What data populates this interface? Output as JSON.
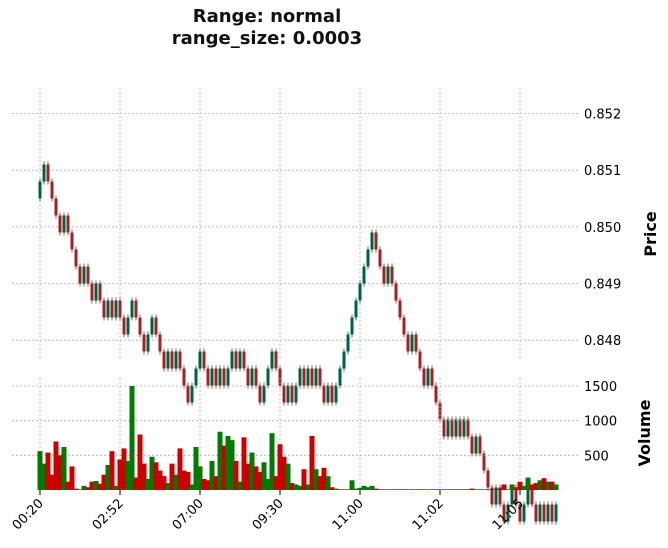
{
  "chart_data": {
    "type": "candlestick",
    "title": "Range: normal",
    "subtitle": "range_size: 0.0003",
    "price_panel": {
      "ylabel": "Price",
      "yticks": [
        0.848,
        0.849,
        0.85,
        0.851,
        0.852
      ],
      "ylim": [
        0.84765,
        0.85245
      ]
    },
    "volume_panel": {
      "ylabel": "Volume",
      "yticks": [
        500,
        1000,
        1500
      ],
      "ylim": [
        0,
        1500
      ]
    },
    "x_tick_labels": [
      "00:20",
      "02:52",
      "07:00",
      "09:30",
      "11:00",
      "11:02",
      "11:05"
    ],
    "x_tick_indices": [
      0,
      20,
      40,
      60,
      80,
      100,
      120
    ],
    "grid": true,
    "colors": {
      "up": "#006340",
      "down": "#A02128",
      "volume_up": "#007a00",
      "volume_down": "#cc0000",
      "grid": "#b0b0b0"
    },
    "bricks": [
      {
        "dir": "up",
        "vol": 560
      },
      {
        "dir": "up",
        "vol": 380
      },
      {
        "dir": "down",
        "vol": 540
      },
      {
        "dir": "down",
        "vol": 220
      },
      {
        "dir": "down",
        "vol": 700
      },
      {
        "dir": "down",
        "vol": 500
      },
      {
        "dir": "up",
        "vol": 620
      },
      {
        "dir": "down",
        "vol": 120
      },
      {
        "dir": "down",
        "vol": 340
      },
      {
        "dir": "down",
        "vol": 20
      },
      {
        "dir": "down",
        "vol": 10
      },
      {
        "dir": "up",
        "vol": 60
      },
      {
        "dir": "down",
        "vol": 40
      },
      {
        "dir": "down",
        "vol": 120
      },
      {
        "dir": "up",
        "vol": 130
      },
      {
        "dir": "down",
        "vol": 90
      },
      {
        "dir": "down",
        "vol": 220
      },
      {
        "dir": "up",
        "vol": 360
      },
      {
        "dir": "down",
        "vol": 560
      },
      {
        "dir": "up",
        "vol": 60
      },
      {
        "dir": "down",
        "vol": 440
      },
      {
        "dir": "down",
        "vol": 600
      },
      {
        "dir": "up",
        "vol": 420
      },
      {
        "dir": "up",
        "vol": 1500
      },
      {
        "dir": "down",
        "vol": 180
      },
      {
        "dir": "down",
        "vol": 800
      },
      {
        "dir": "down",
        "vol": 380
      },
      {
        "dir": "up",
        "vol": 160
      },
      {
        "dir": "up",
        "vol": 480
      },
      {
        "dir": "down",
        "vol": 400
      },
      {
        "dir": "down",
        "vol": 280
      },
      {
        "dir": "down",
        "vol": 200
      },
      {
        "dir": "up",
        "vol": 100
      },
      {
        "dir": "down",
        "vol": 380
      },
      {
        "dir": "up",
        "vol": 220
      },
      {
        "dir": "down",
        "vol": 600
      },
      {
        "dir": "down",
        "vol": 280
      },
      {
        "dir": "down",
        "vol": 260
      },
      {
        "dir": "up",
        "vol": 80
      },
      {
        "dir": "up",
        "vol": 620
      },
      {
        "dir": "up",
        "vol": 340
      },
      {
        "dir": "down",
        "vol": 160
      },
      {
        "dir": "down",
        "vol": 140
      },
      {
        "dir": "up",
        "vol": 420
      },
      {
        "dir": "down",
        "vol": 200
      },
      {
        "dir": "up",
        "vol": 840
      },
      {
        "dir": "down",
        "vol": 640
      },
      {
        "dir": "up",
        "vol": 780
      },
      {
        "dir": "up",
        "vol": 720
      },
      {
        "dir": "down",
        "vol": 420
      },
      {
        "dir": "up",
        "vol": 120
      },
      {
        "dir": "down",
        "vol": 760
      },
      {
        "dir": "down",
        "vol": 380
      },
      {
        "dir": "up",
        "vol": 540
      },
      {
        "dir": "down",
        "vol": 340
      },
      {
        "dir": "down",
        "vol": 260
      },
      {
        "dir": "up",
        "vol": 400
      },
      {
        "dir": "up",
        "vol": 160
      },
      {
        "dir": "up",
        "vol": 820
      },
      {
        "dir": "down",
        "vol": 200
      },
      {
        "dir": "down",
        "vol": 660
      },
      {
        "dir": "down",
        "vol": 480
      },
      {
        "dir": "up",
        "vol": 380
      },
      {
        "dir": "down",
        "vol": 100
      },
      {
        "dir": "up",
        "vol": 80
      },
      {
        "dir": "up",
        "vol": 60
      },
      {
        "dir": "down",
        "vol": 300
      },
      {
        "dir": "up",
        "vol": 80
      },
      {
        "dir": "down",
        "vol": 780
      },
      {
        "dir": "up",
        "vol": 300
      },
      {
        "dir": "down",
        "vol": 200
      },
      {
        "dir": "down",
        "vol": 320
      },
      {
        "dir": "up",
        "vol": 200
      },
      {
        "dir": "down",
        "vol": 40
      },
      {
        "dir": "up",
        "vol": 20
      },
      {
        "dir": "up",
        "vol": 10
      },
      {
        "dir": "up",
        "vol": 10
      },
      {
        "dir": "up",
        "vol": 10
      },
      {
        "dir": "up",
        "vol": 140
      },
      {
        "dir": "up",
        "vol": 20
      },
      {
        "dir": "up",
        "vol": 30
      },
      {
        "dir": "up",
        "vol": 60
      },
      {
        "dir": "up",
        "vol": 40
      },
      {
        "dir": "up",
        "vol": 60
      },
      {
        "dir": "down",
        "vol": 20
      },
      {
        "dir": "down",
        "vol": 10
      },
      {
        "dir": "down",
        "vol": 10
      },
      {
        "dir": "up",
        "vol": 10
      },
      {
        "dir": "down",
        "vol": 10
      },
      {
        "dir": "down",
        "vol": 10
      },
      {
        "dir": "down",
        "vol": 10
      },
      {
        "dir": "down",
        "vol": 10
      },
      {
        "dir": "down",
        "vol": 10
      },
      {
        "dir": "up",
        "vol": 10
      },
      {
        "dir": "down",
        "vol": 10
      },
      {
        "dir": "down",
        "vol": 10
      },
      {
        "dir": "down",
        "vol": 10
      },
      {
        "dir": "up",
        "vol": 10
      },
      {
        "dir": "down",
        "vol": 10
      },
      {
        "dir": "down",
        "vol": 10
      },
      {
        "dir": "down",
        "vol": 10
      },
      {
        "dir": "down",
        "vol": 10
      },
      {
        "dir": "up",
        "vol": 10
      },
      {
        "dir": "down",
        "vol": 10
      },
      {
        "dir": "up",
        "vol": 10
      },
      {
        "dir": "down",
        "vol": 10
      },
      {
        "dir": "up",
        "vol": 10
      },
      {
        "dir": "down",
        "vol": 10
      },
      {
        "dir": "down",
        "vol": 20
      },
      {
        "dir": "up",
        "vol": 10
      },
      {
        "dir": "down",
        "vol": 10
      },
      {
        "dir": "down",
        "vol": 10
      },
      {
        "dir": "down",
        "vol": 10
      },
      {
        "dir": "down",
        "vol": 10
      },
      {
        "dir": "up",
        "vol": 10
      },
      {
        "dir": "down",
        "vol": 20
      },
      {
        "dir": "down",
        "vol": 80
      },
      {
        "dir": "up",
        "vol": 10
      },
      {
        "dir": "up",
        "vol": 80
      },
      {
        "dir": "down",
        "vol": 40
      },
      {
        "dir": "down",
        "vol": 120
      },
      {
        "dir": "up",
        "vol": 60
      },
      {
        "dir": "up",
        "vol": 180
      },
      {
        "dir": "down",
        "vol": 80
      },
      {
        "dir": "down",
        "vol": 100
      },
      {
        "dir": "up",
        "vol": 140
      },
      {
        "dir": "down",
        "vol": 170
      },
      {
        "dir": "up",
        "vol": 120
      },
      {
        "dir": "down",
        "vol": 120
      },
      {
        "dir": "up",
        "vol": 80
      }
    ],
    "range_size": 0.0003,
    "open_start": 0.8505,
    "path_up_down": [
      "up",
      "up",
      "down",
      "down",
      "down",
      "down",
      "up",
      "down",
      "down",
      "down",
      "down",
      "up",
      "down",
      "down",
      "up",
      "down",
      "down",
      "up",
      "down",
      "up",
      "down",
      "down",
      "up",
      "up",
      "down",
      "down",
      "down",
      "up",
      "up",
      "down",
      "down",
      "down",
      "up",
      "down",
      "up",
      "down",
      "down",
      "down",
      "up",
      "up",
      "up",
      "down",
      "down",
      "up",
      "down",
      "up",
      "down",
      "up",
      "up",
      "down",
      "up",
      "down",
      "down",
      "up",
      "down",
      "down",
      "up",
      "up",
      "up",
      "down",
      "down",
      "down",
      "up",
      "down",
      "up",
      "up",
      "down",
      "up",
      "down",
      "up",
      "down",
      "down",
      "up",
      "down",
      "up",
      "up",
      "up",
      "up",
      "up",
      "up",
      "up",
      "up",
      "up",
      "up",
      "down",
      "down",
      "down",
      "up",
      "down",
      "down",
      "down",
      "down",
      "down",
      "up",
      "down",
      "down",
      "down",
      "up",
      "down",
      "down",
      "down",
      "down",
      "up",
      "down",
      "up",
      "down",
      "up",
      "down",
      "down",
      "up",
      "down",
      "down",
      "down",
      "down",
      "up",
      "down",
      "down",
      "up",
      "up",
      "down",
      "down",
      "up",
      "up",
      "down",
      "down",
      "up",
      "down",
      "up",
      "down",
      "up"
    ]
  }
}
